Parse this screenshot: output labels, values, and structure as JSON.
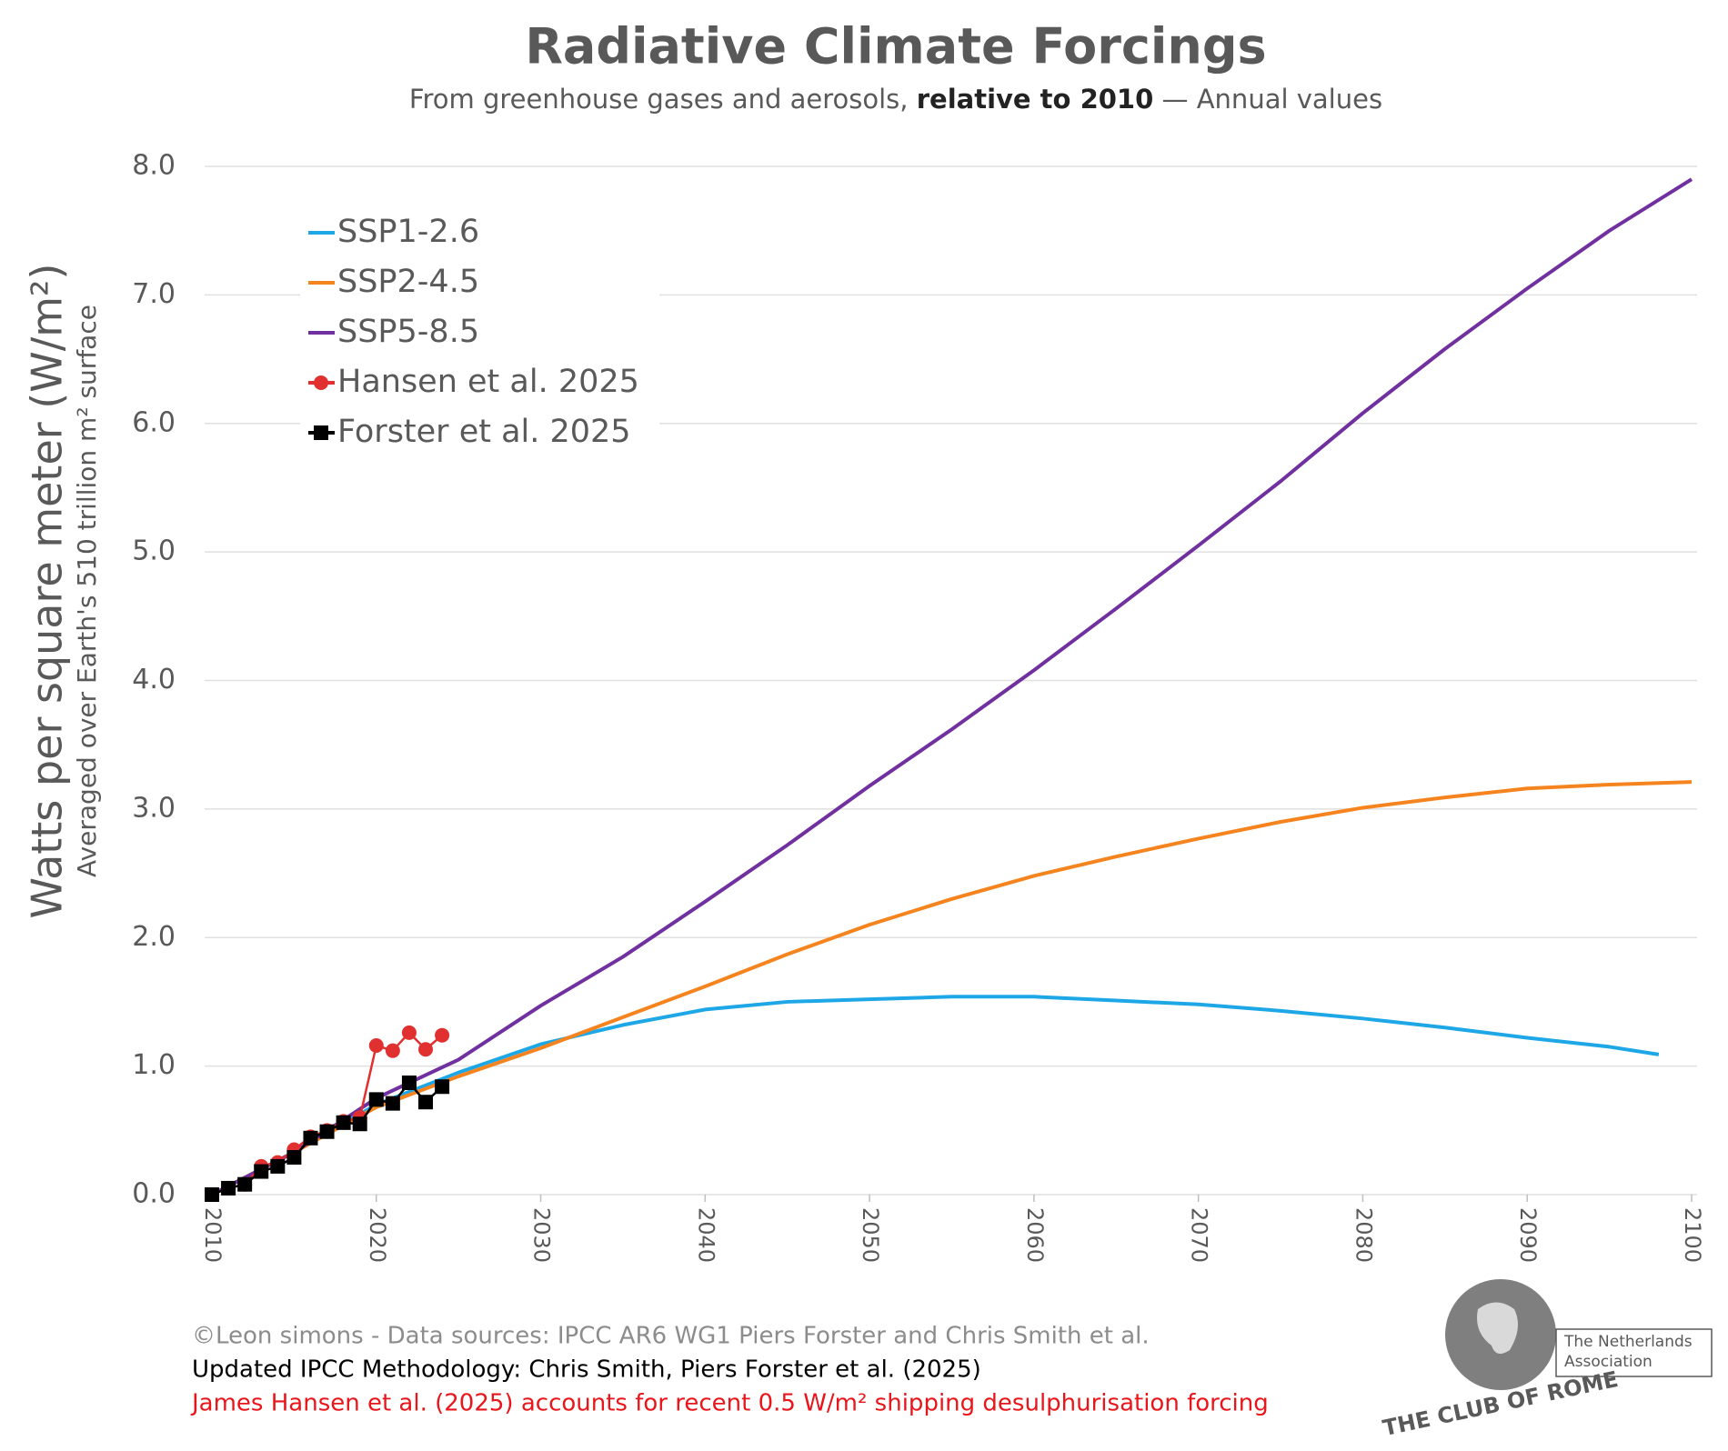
{
  "chart_data": {
    "type": "line",
    "title": "Radiative Climate Forcings",
    "subtitle": [
      "From greenhouse gases and aerosols, ",
      "relative to 2010",
      " — Annual values"
    ],
    "y_label": "Watts per square meter (W/m²)",
    "y_sublabel": "Averaged over Earth's 510 trillion m² surface",
    "xlim": [
      2010,
      2100
    ],
    "xticks": [
      2010,
      2020,
      2030,
      2040,
      2050,
      2060,
      2070,
      2080,
      2090,
      2100
    ],
    "ylim": [
      0,
      8
    ],
    "yticks": [
      {
        "value": 0,
        "label": "0.0"
      },
      {
        "value": 1,
        "label": "1.0"
      },
      {
        "value": 2,
        "label": "2.0"
      },
      {
        "value": 3,
        "label": "3.0"
      },
      {
        "value": 4,
        "label": "4.0"
      },
      {
        "value": 5,
        "label": "5.0"
      },
      {
        "value": 6,
        "label": "6.0"
      },
      {
        "value": 7,
        "label": "7.0"
      },
      {
        "value": 8,
        "label": "8.0"
      }
    ],
    "grid": true,
    "legend": "top-left",
    "series": [
      {
        "name": "SSP1-2.6",
        "color": "#1ea7e6",
        "marker": "none",
        "x": [
          2010,
          2015,
          2020,
          2025,
          2030,
          2035,
          2040,
          2045,
          2050,
          2055,
          2060,
          2065,
          2070,
          2075,
          2080,
          2085,
          2090,
          2095,
          2098
        ],
        "values": [
          0,
          0.33,
          0.7,
          0.95,
          1.17,
          1.32,
          1.44,
          1.5,
          1.52,
          1.54,
          1.54,
          1.51,
          1.48,
          1.43,
          1.37,
          1.3,
          1.22,
          1.15,
          1.09
        ]
      },
      {
        "name": "SSP2-4.5",
        "color": "#f5841f",
        "marker": "none",
        "x": [
          2010,
          2015,
          2020,
          2025,
          2030,
          2035,
          2040,
          2045,
          2050,
          2055,
          2060,
          2065,
          2070,
          2075,
          2080,
          2085,
          2090,
          2095,
          2100
        ],
        "values": [
          0,
          0.33,
          0.68,
          0.92,
          1.14,
          1.38,
          1.62,
          1.87,
          2.1,
          2.3,
          2.48,
          2.63,
          2.77,
          2.9,
          3.01,
          3.09,
          3.16,
          3.19,
          3.21
        ]
      },
      {
        "name": "SSP5-8.5",
        "color": "#7030a0",
        "marker": "none",
        "x": [
          2010,
          2015,
          2020,
          2025,
          2030,
          2035,
          2040,
          2045,
          2050,
          2055,
          2060,
          2065,
          2070,
          2075,
          2080,
          2085,
          2090,
          2095,
          2100
        ],
        "values": [
          0,
          0.33,
          0.75,
          1.05,
          1.47,
          1.85,
          2.28,
          2.72,
          3.18,
          3.62,
          4.08,
          4.56,
          5.05,
          5.55,
          6.08,
          6.58,
          7.05,
          7.5,
          7.9
        ]
      },
      {
        "name": "Hansen et al. 2025",
        "color": "#e03030",
        "marker": "circle",
        "x": [
          2010,
          2011,
          2012,
          2013,
          2014,
          2015,
          2016,
          2017,
          2018,
          2019,
          2020,
          2021,
          2022,
          2023,
          2024
        ],
        "values": [
          0,
          0.05,
          0.08,
          0.22,
          0.25,
          0.35,
          0.45,
          0.5,
          0.57,
          0.6,
          1.16,
          1.12,
          1.26,
          1.13,
          1.24
        ]
      },
      {
        "name": "Forster et al. 2025",
        "color": "#000000",
        "marker": "square",
        "x": [
          2010,
          2011,
          2012,
          2013,
          2014,
          2015,
          2016,
          2017,
          2018,
          2019,
          2020,
          2021,
          2022,
          2023,
          2024
        ],
        "values": [
          0,
          0.05,
          0.08,
          0.18,
          0.22,
          0.29,
          0.44,
          0.49,
          0.56,
          0.55,
          0.74,
          0.71,
          0.87,
          0.72,
          0.84
        ]
      }
    ],
    "notes": [
      {
        "text": "©Leon simons - Data sources: IPCC AR6 WG1 Piers Forster and Chris Smith et al.",
        "color": "#8c8c8c"
      },
      {
        "text": "Updated IPCC Methodology: Chris Smith, Piers Forster et al. (2025)",
        "color": "#000000"
      },
      {
        "text": "James Hansen et al. (2025) accounts for recent 0.5 W/m² shipping desulphurisation forcing",
        "color": "#e8161b"
      }
    ],
    "logo": {
      "name": "THE CLUB OF ROME",
      "association": [
        "The Netherlands",
        "Association"
      ]
    }
  }
}
